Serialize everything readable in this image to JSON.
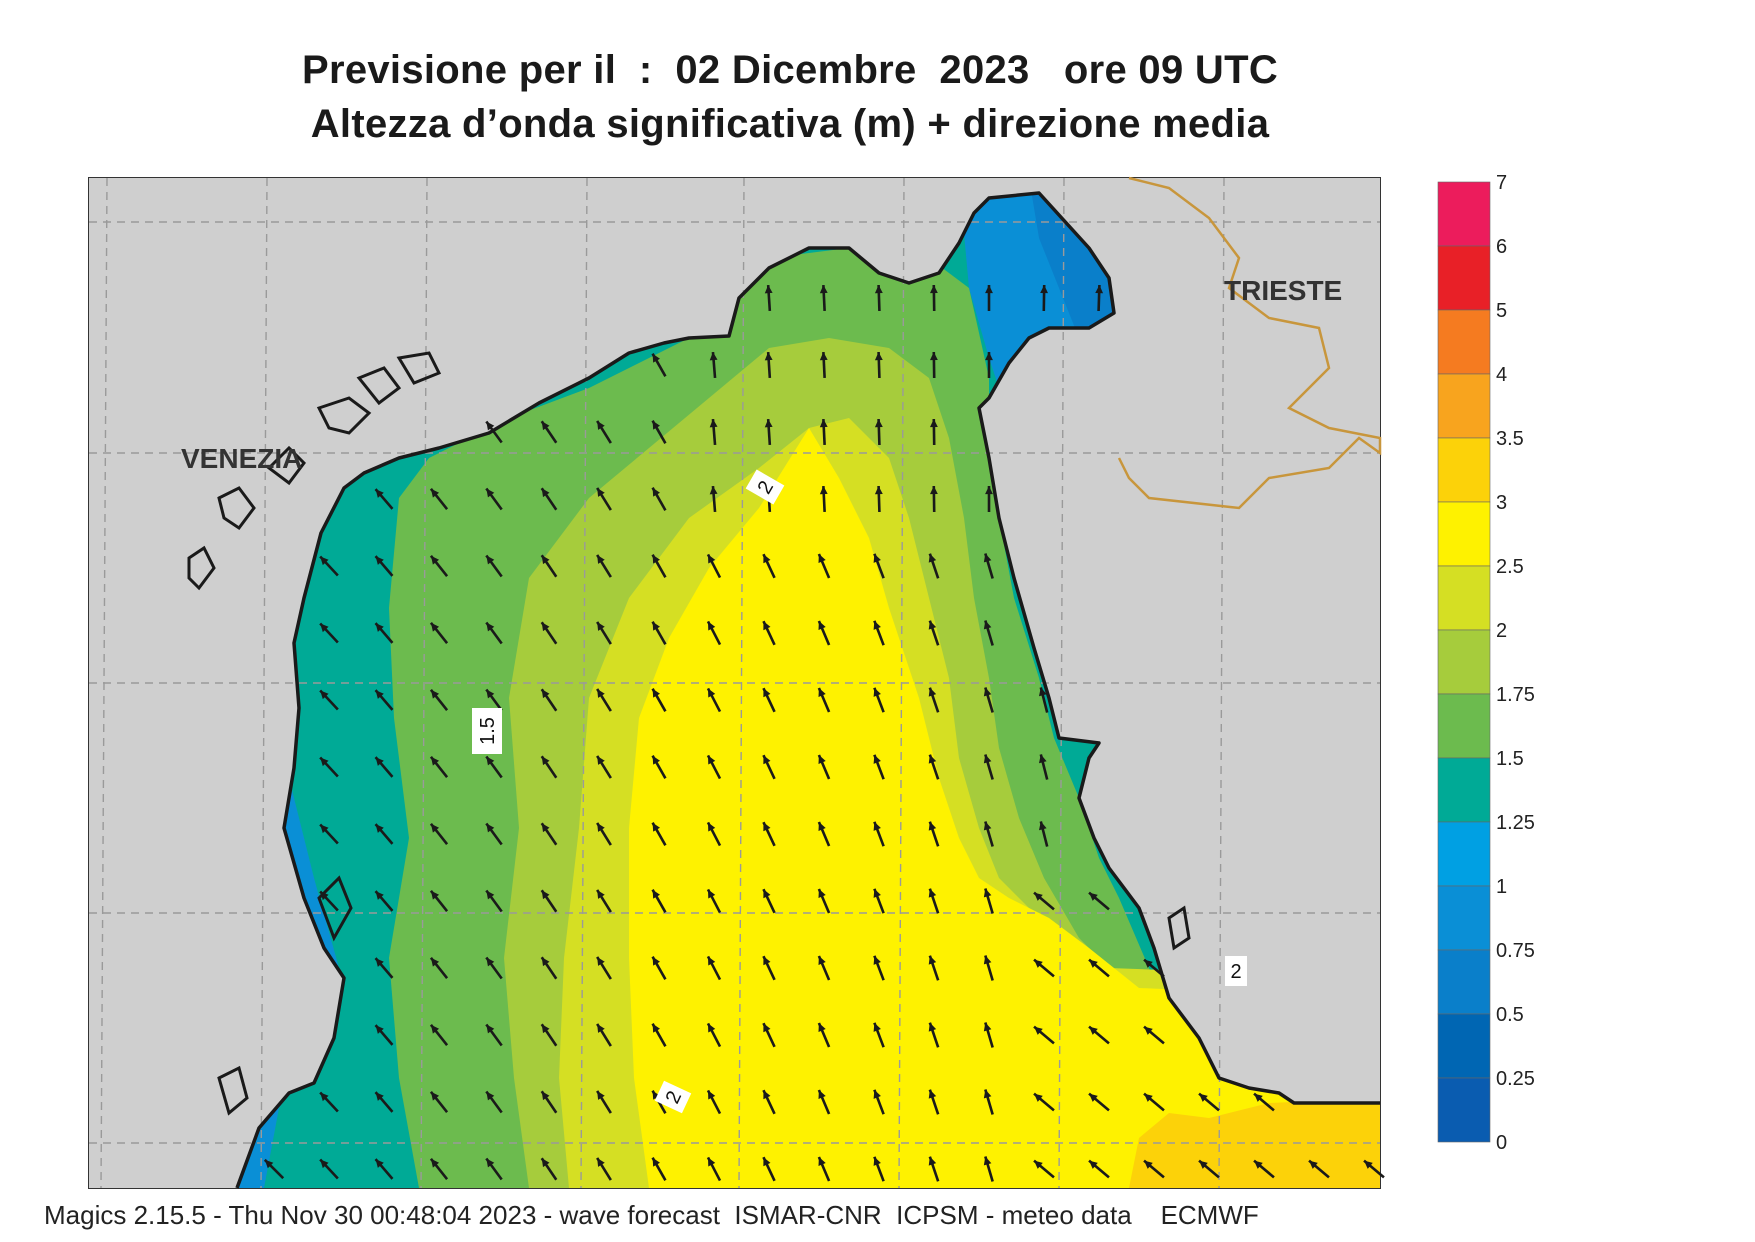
{
  "header": {
    "line1": "Previsione per il  :  02 Dicembre  2023   ore 09 UTC",
    "line2": "Altezza d’onda significativa (m) + direzione media"
  },
  "map": {
    "cities": [
      {
        "name": "VENEZIA"
      },
      {
        "name": "TRIESTE"
      }
    ],
    "contour_labels": [
      "2",
      "1.5",
      "2",
      "2"
    ],
    "colors": {
      "land": "#cfcfcf",
      "coast": "#1a1a1a",
      "border": "#c8963c",
      "grid": "#9a9a9a",
      "arrow": "#1a1a1a"
    }
  },
  "legend": {
    "labels": [
      "7",
      "6",
      "5",
      "4",
      "3.5",
      "3",
      "2.5",
      "2",
      "1.75",
      "1.5",
      "1.25",
      "1",
      "0.75",
      "0.5",
      "0.25",
      "0"
    ],
    "colors": [
      "#ec1c5c",
      "#e82027",
      "#f57b20",
      "#f8a41e",
      "#fcd209",
      "#fef200",
      "#d5df23",
      "#a6cc3c",
      "#6cbb4e",
      "#00aa96",
      "#00a0e3",
      "#0a8fd6",
      "#0a7fca",
      "#0066b3",
      "#0a5cb0"
    ]
  },
  "footer": "Magics 2.15.5 - Thu Nov 30 00:48:04 2023 - wave forecast  ISMAR-CNR  ICPSM - meteo data    ECMWF"
}
